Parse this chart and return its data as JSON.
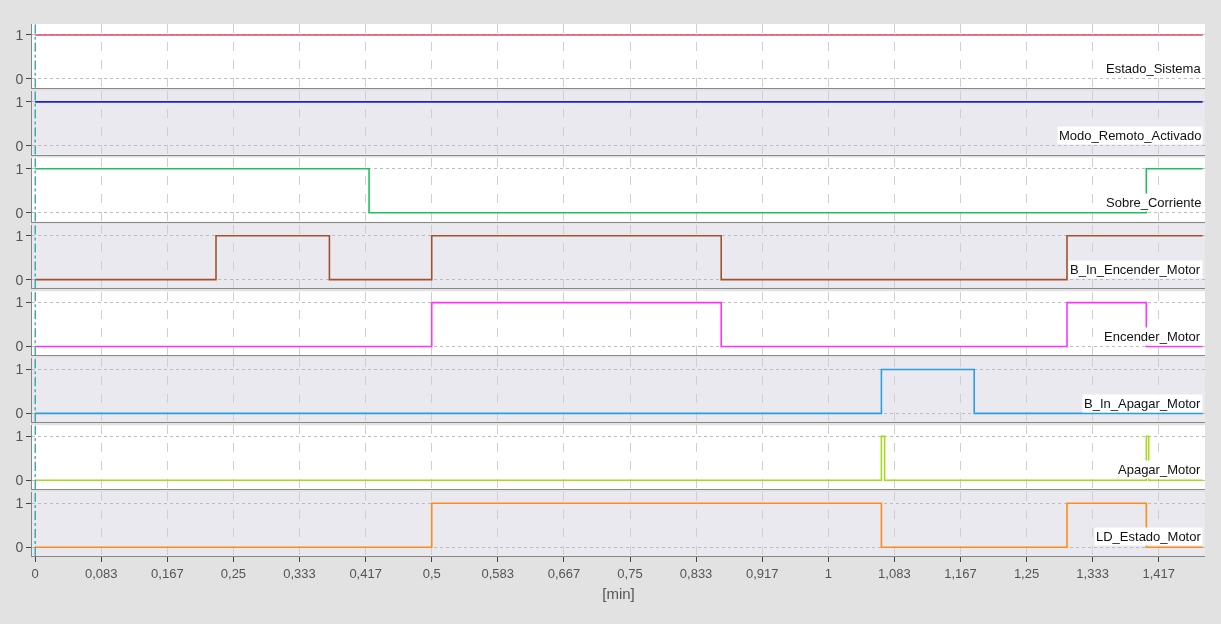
{
  "chart_data": [
    {
      "type": "step",
      "series": [
        {
          "name": "Estado_Sistema",
          "color": "#e8446a",
          "x": [
            0,
            1.472
          ],
          "values": [
            1,
            1
          ]
        }
      ],
      "ylim": [
        -0.2,
        1.25
      ],
      "yticks": [
        0,
        1
      ],
      "xlim": [
        -0.004,
        1.475
      ],
      "tick_labels": "y",
      "grid": true,
      "ref_lines": [
        {
          "axis": "x",
          "value": 0,
          "color": "#20a0a0",
          "line_style": "dotted"
        }
      ]
    },
    {
      "type": "step",
      "series": [
        {
          "name": "Modo_Remoto_Activado",
          "color": "#2020d0",
          "x": [
            0,
            1.472
          ],
          "values": [
            1,
            1
          ]
        }
      ],
      "ylim": [
        -0.2,
        1.25
      ],
      "yticks": [
        0,
        1
      ],
      "xlim": [
        -0.004,
        1.475
      ],
      "tick_labels": "y",
      "grid": true,
      "ref_lines": [
        {
          "axis": "x",
          "value": 0,
          "color": "#20a0a0",
          "line_style": "dotted"
        }
      ]
    },
    {
      "type": "step",
      "series": [
        {
          "name": "Sobre_Corriente",
          "color": "#20c060",
          "x": [
            0,
            0.421,
            1.401,
            1.472
          ],
          "values": [
            1,
            0,
            1,
            1
          ]
        }
      ],
      "ylim": [
        -0.2,
        1.25
      ],
      "yticks": [
        0,
        1
      ],
      "xlim": [
        -0.004,
        1.475
      ],
      "tick_labels": "y",
      "grid": true,
      "ref_lines": [
        {
          "axis": "x",
          "value": 0,
          "color": "#20a0a0",
          "line_style": "dotted"
        }
      ]
    },
    {
      "type": "step",
      "series": [
        {
          "name": "B_In_Encender_Motor",
          "color": "#a0522d",
          "x": [
            0,
            0.228,
            0.371,
            0.5,
            0.865,
            1.301,
            1.472
          ],
          "values": [
            0,
            1,
            0,
            1,
            0,
            1,
            1
          ]
        }
      ],
      "ylim": [
        -0.2,
        1.25
      ],
      "yticks": [
        0,
        1
      ],
      "xlim": [
        -0.004,
        1.475
      ],
      "tick_labels": "y",
      "grid": true,
      "ref_lines": [
        {
          "axis": "x",
          "value": 0,
          "color": "#20a0a0",
          "line_style": "dotted"
        }
      ]
    },
    {
      "type": "step",
      "series": [
        {
          "name": "Encender_Motor",
          "color": "#ff33ff",
          "x": [
            0,
            0.5,
            0.865,
            1.301,
            1.401,
            1.472
          ],
          "values": [
            0,
            1,
            0,
            1,
            0,
            0
          ]
        }
      ],
      "ylim": [
        -0.2,
        1.25
      ],
      "yticks": [
        0,
        1
      ],
      "xlim": [
        -0.004,
        1.475
      ],
      "tick_labels": "y",
      "grid": true,
      "ref_lines": [
        {
          "axis": "x",
          "value": 0,
          "color": "#20a0a0",
          "line_style": "dotted"
        }
      ]
    },
    {
      "type": "step",
      "series": [
        {
          "name": "B_In_Apagar_Motor",
          "color": "#2aa0e0",
          "x": [
            0,
            1.067,
            1.184,
            1.472
          ],
          "values": [
            0,
            1,
            0,
            0
          ]
        }
      ],
      "ylim": [
        -0.2,
        1.25
      ],
      "yticks": [
        0,
        1
      ],
      "xlim": [
        -0.004,
        1.475
      ],
      "tick_labels": "y",
      "grid": true,
      "ref_lines": [
        {
          "axis": "x",
          "value": 0,
          "color": "#20a0a0",
          "line_style": "dotted"
        }
      ]
    },
    {
      "type": "step",
      "series": [
        {
          "name": "Apagar_Motor",
          "color": "#a8d820",
          "x": [
            0,
            1.067,
            1.071,
            1.401,
            1.404,
            1.472
          ],
          "values": [
            0,
            1,
            0,
            1,
            0,
            0
          ]
        }
      ],
      "ylim": [
        -0.2,
        1.25
      ],
      "yticks": [
        0,
        1
      ],
      "xlim": [
        -0.004,
        1.475
      ],
      "tick_labels": "y",
      "grid": true,
      "ref_lines": [
        {
          "axis": "x",
          "value": 0,
          "color": "#20a0a0",
          "line_style": "dotted"
        }
      ]
    },
    {
      "type": "step",
      "series": [
        {
          "name": "LD_Estado_Motor",
          "color": "#ff8c1a",
          "x": [
            0,
            0.5,
            1.067,
            1.301,
            1.401,
            1.472
          ],
          "values": [
            0,
            1,
            0,
            1,
            0,
            0
          ]
        }
      ],
      "ylim": [
        -0.2,
        1.25
      ],
      "yticks": [
        0,
        1
      ],
      "xlim": [
        -0.004,
        1.475
      ],
      "xticks": [
        {
          "value": 0,
          "label": "0"
        },
        {
          "value": 0.0833,
          "label": "0,083"
        },
        {
          "value": 0.1667,
          "label": "0,167"
        },
        {
          "value": 0.25,
          "label": "0,25"
        },
        {
          "value": 0.3333,
          "label": "0,333"
        },
        {
          "value": 0.4167,
          "label": "0,417"
        },
        {
          "value": 0.5,
          "label": "0,5"
        },
        {
          "value": 0.5833,
          "label": "0,583"
        },
        {
          "value": 0.6667,
          "label": "0,667"
        },
        {
          "value": 0.75,
          "label": "0,75"
        },
        {
          "value": 0.8333,
          "label": "0,833"
        },
        {
          "value": 0.9167,
          "label": "0,917"
        },
        {
          "value": 1,
          "label": "1"
        },
        {
          "value": 1.0833,
          "label": "1,083"
        },
        {
          "value": 1.1667,
          "label": "1,167"
        },
        {
          "value": 1.25,
          "label": "1,25"
        },
        {
          "value": 1.3333,
          "label": "1,333"
        },
        {
          "value": 1.4167,
          "label": "1,417"
        }
      ],
      "xlabel": "[min]",
      "grid": true,
      "ref_lines": [
        {
          "axis": "x",
          "value": 0,
          "color": "#20a0a0",
          "line_style": "dotted"
        }
      ]
    }
  ]
}
